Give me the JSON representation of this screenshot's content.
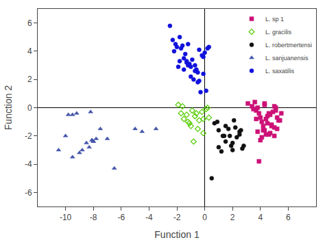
{
  "chart_data": {
    "type": "scatter",
    "xlabel": "Function 1",
    "ylabel": "Function 2",
    "xlim": [
      -12,
      8
    ],
    "ylim": [
      -7,
      7
    ],
    "xticks": [
      -10,
      -8,
      -6,
      -4,
      -2,
      0,
      2,
      4,
      6
    ],
    "yticks": [
      -6,
      -4,
      -2,
      0,
      2,
      4,
      6
    ],
    "grid": false,
    "legend": "upper right",
    "series": [
      {
        "name": "L. sp 1",
        "color": "#cc1177",
        "marker": "square",
        "x": [
          3.1,
          3.4,
          3.6,
          3.7,
          3.8,
          3.9,
          4.0,
          4.1,
          4.2,
          4.3,
          4.3,
          4.4,
          4.5,
          4.6,
          4.7,
          4.8,
          4.9,
          5.0,
          5.1,
          5.2,
          5.3,
          5.5,
          3.5,
          4.0,
          4.2,
          4.5,
          4.7,
          5.0,
          4.1,
          5.2,
          5.4,
          4.4,
          4.8,
          3.8,
          5.1,
          3.9,
          4.6,
          5.0,
          4.3,
          3.7
        ],
        "values": [
          0.3,
          0.1,
          0.4,
          -0.2,
          0.0,
          -0.4,
          -0.7,
          -1.0,
          -1.3,
          -1.6,
          0.2,
          -0.8,
          -1.1,
          -1.9,
          -0.5,
          -1.2,
          -0.3,
          -2.0,
          0.0,
          -1.5,
          -0.9,
          -0.4,
          -0.1,
          -2.3,
          -1.6,
          -0.6,
          -1.8,
          0.1,
          -2.1,
          -0.7,
          -0.9,
          -1.9,
          -1.3,
          -1.7,
          -0.2,
          -3.8,
          -0.4,
          -1.4,
          0.3,
          -0.8
        ]
      },
      {
        "name": "L. gracilis",
        "color": "#55cc00",
        "marker": "diamond-open",
        "x": [
          -1.9,
          -1.7,
          -1.5,
          -1.3,
          -1.2,
          -1.0,
          -0.9,
          -0.7,
          -0.5,
          -0.4,
          -0.2,
          -0.1,
          0.1,
          0.3,
          -1.6,
          -1.1,
          -0.6,
          -0.1,
          0.2,
          -0.8
        ],
        "values": [
          0.2,
          -0.4,
          -0.8,
          -0.5,
          -1.0,
          -1.3,
          -0.2,
          -0.6,
          -1.5,
          -0.9,
          -0.3,
          -1.8,
          -0.1,
          -0.7,
          0.1,
          -1.1,
          -0.4,
          -0.8,
          0.0,
          -2.4
        ]
      },
      {
        "name": "L. robertmertensi",
        "color": "#111111",
        "marker": "circle",
        "x": [
          0.7,
          1.0,
          1.3,
          1.5,
          1.7,
          1.9,
          2.1,
          2.3,
          2.5,
          2.7,
          1.0,
          1.5,
          2.0,
          2.5,
          1.2,
          1.8,
          2.2,
          2.8,
          0.9,
          2.0,
          1.4,
          2.6,
          0.5
        ],
        "values": [
          -1.1,
          -1.6,
          -2.0,
          -2.4,
          -1.5,
          -2.7,
          -0.9,
          -2.1,
          -1.7,
          -2.9,
          -2.8,
          -1.3,
          -2.5,
          -1.9,
          -3.1,
          -2.0,
          -1.4,
          -2.7,
          -1.0,
          -3.0,
          -2.0,
          -1.6,
          -5.0
        ]
      },
      {
        "name": "L. sanjuanensis",
        "color": "#4455aa",
        "marker": "triangle-up",
        "x": [
          -10.5,
          -10.0,
          -9.8,
          -9.5,
          -9.0,
          -8.8,
          -8.5,
          -8.3,
          -8.1,
          -8.0,
          -8.0,
          -7.8,
          -7.5,
          -7.0,
          -6.5,
          -5.0,
          -4.5,
          -3.5,
          -9.2,
          -8.2,
          -8.1,
          -9.5
        ],
        "values": [
          -3.0,
          -2.0,
          -0.5,
          -3.5,
          -3.2,
          -3.0,
          -2.5,
          -2.8,
          -2.3,
          -2.4,
          -2.4,
          -2.2,
          -1.5,
          -2.2,
          -4.3,
          -1.5,
          -1.7,
          -1.5,
          -0.4,
          -0.3,
          -2.3,
          -0.5
        ]
      },
      {
        "name": "L. saxatilis",
        "color": "#1111dd",
        "marker": "circle",
        "x": [
          -2.5,
          -2.3,
          -2.1,
          -2.0,
          -1.8,
          -1.7,
          -1.5,
          -1.4,
          -1.3,
          -1.2,
          -1.1,
          -1.0,
          -0.9,
          -0.7,
          -0.6,
          -0.5,
          -0.4,
          -0.2,
          -0.1,
          0.0,
          0.1,
          0.3,
          -2.2,
          -1.8,
          -1.5,
          -1.2,
          -0.8,
          -0.4,
          -0.1,
          0.2,
          -1.6,
          -1.0,
          -0.5,
          -1.9,
          -1.3,
          -0.7,
          -0.3
        ],
        "values": [
          5.8,
          4.8,
          4.5,
          4.3,
          5.0,
          4.2,
          3.5,
          3.8,
          3.2,
          4.5,
          3.1,
          2.9,
          3.4,
          3.0,
          2.7,
          2.5,
          4.1,
          3.7,
          2.4,
          3.9,
          1.2,
          4.3,
          4.0,
          3.3,
          2.7,
          3.0,
          2.0,
          1.9,
          3.6,
          4.2,
          4.4,
          2.2,
          1.8,
          2.9,
          3.3,
          2.6,
          1.1
        ]
      }
    ]
  }
}
